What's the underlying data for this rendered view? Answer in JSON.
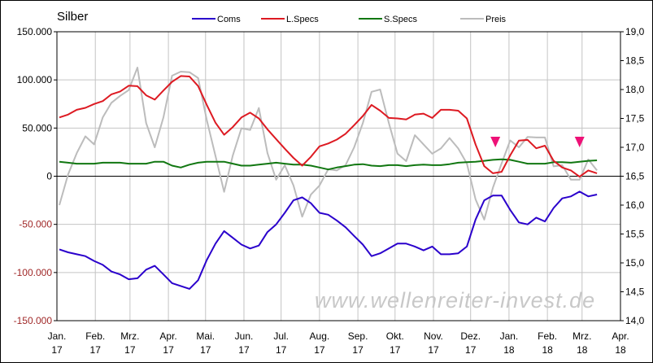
{
  "chart_data": {
    "type": "line",
    "title": "Silber",
    "watermark": "www.wellenreiter-invest.de",
    "x": [
      "2017-01-03",
      "2017-01-10",
      "2017-01-17",
      "2017-01-24",
      "2017-01-31",
      "2017-02-07",
      "2017-02-14",
      "2017-02-21",
      "2017-02-28",
      "2017-03-07",
      "2017-03-14",
      "2017-03-21",
      "2017-03-28",
      "2017-04-04",
      "2017-04-11",
      "2017-04-18",
      "2017-04-25",
      "2017-05-02",
      "2017-05-09",
      "2017-05-16",
      "2017-05-23",
      "2017-05-30",
      "2017-06-06",
      "2017-06-13",
      "2017-06-20",
      "2017-06-27",
      "2017-07-04",
      "2017-07-11",
      "2017-07-18",
      "2017-07-25",
      "2017-08-01",
      "2017-08-08",
      "2017-08-15",
      "2017-08-22",
      "2017-08-29",
      "2017-09-05",
      "2017-09-12",
      "2017-09-19",
      "2017-09-26",
      "2017-10-03",
      "2017-10-10",
      "2017-10-17",
      "2017-10-24",
      "2017-10-31",
      "2017-11-07",
      "2017-11-14",
      "2017-11-21",
      "2017-11-28",
      "2017-12-05",
      "2017-12-12",
      "2017-12-19",
      "2017-12-26",
      "2018-01-02",
      "2018-01-09",
      "2018-01-16",
      "2018-01-23",
      "2018-01-30",
      "2018-02-06",
      "2018-02-13",
      "2018-02-20",
      "2018-02-27",
      "2018-03-06",
      "2018-03-13"
    ],
    "series": [
      {
        "name": "Coms",
        "axis": "left",
        "color": "#2a00cc",
        "values": [
          -76000,
          -79000,
          -81000,
          -83000,
          -88000,
          -92000,
          -99000,
          -102000,
          -107000,
          -106000,
          -97000,
          -93000,
          -102000,
          -111000,
          -114000,
          -117000,
          -108000,
          -87000,
          -70000,
          -57000,
          -64000,
          -71000,
          -75000,
          -72000,
          -58000,
          -50000,
          -38000,
          -25000,
          -22000,
          -28000,
          -38000,
          -40000,
          -46000,
          -53000,
          -62000,
          -71000,
          -83000,
          -80000,
          -75000,
          -70000,
          -70000,
          -73000,
          -77000,
          -73000,
          -81000,
          -81000,
          -80000,
          -73000,
          -45000,
          -25000,
          -20000,
          -20000,
          -35000,
          -48000,
          -50000,
          -43000,
          -47000,
          -33000,
          -23000,
          -21000,
          -16000,
          -21000,
          -19000
        ]
      },
      {
        "name": "L.Specs",
        "axis": "left",
        "color": "#dd1a22",
        "values": [
          61000,
          64000,
          69000,
          71000,
          75000,
          78000,
          85000,
          88000,
          94000,
          93500,
          84000,
          79500,
          89000,
          98000,
          104000,
          103500,
          93600,
          74000,
          55500,
          43000,
          51000,
          61000,
          66000,
          60000,
          48700,
          38500,
          28600,
          19000,
          11000,
          20000,
          31000,
          34000,
          38000,
          44000,
          53000,
          62500,
          74000,
          68000,
          60500,
          60000,
          59000,
          64000,
          65000,
          60500,
          69000,
          69000,
          68000,
          60000,
          33000,
          10500,
          3000,
          4600,
          21600,
          37000,
          37700,
          29000,
          31700,
          16000,
          9000,
          6000,
          -500,
          6000,
          3000
        ]
      },
      {
        "name": "S.Specs",
        "axis": "left",
        "color": "#117711",
        "values": [
          15000,
          14000,
          13000,
          13000,
          13000,
          14000,
          14000,
          14000,
          13000,
          13000,
          13000,
          15000,
          15000,
          11000,
          9000,
          12000,
          14000,
          15000,
          15000,
          15000,
          13000,
          11000,
          11000,
          12000,
          13000,
          14000,
          13000,
          12000,
          12000,
          11000,
          9000,
          7000,
          9000,
          10500,
          12000,
          12500,
          11000,
          10500,
          11500,
          11500,
          10500,
          11500,
          12000,
          11500,
          11500,
          12500,
          14000,
          14500,
          15000,
          16000,
          17000,
          17500,
          17000,
          15000,
          13000,
          13000,
          13000,
          14500,
          14500,
          14000,
          15000,
          16000,
          16500
        ]
      },
      {
        "name": "Preis",
        "axis": "right",
        "color": "#bcbcbc",
        "values": [
          16.0,
          16.53,
          16.9,
          17.19,
          17.05,
          17.52,
          17.77,
          17.89,
          17.99,
          18.38,
          17.42,
          17.0,
          17.52,
          18.24,
          18.31,
          18.3,
          18.2,
          17.47,
          16.85,
          16.23,
          16.86,
          17.33,
          17.3,
          17.68,
          16.9,
          16.44,
          16.69,
          16.34,
          15.8,
          16.18,
          16.34,
          16.62,
          16.6,
          16.69,
          17.0,
          17.42,
          17.96,
          18.0,
          17.42,
          16.89,
          16.76,
          17.21,
          17.05,
          16.89,
          16.98,
          17.16,
          16.98,
          16.72,
          16.1,
          15.75,
          16.3,
          16.72,
          17.12,
          17.0,
          17.18,
          17.17,
          17.17,
          16.67,
          16.69,
          16.44,
          16.44,
          16.79,
          16.6
        ]
      }
    ],
    "markers": [
      {
        "date": "2017-12-21",
        "shape": "triangle-down",
        "color": "#ee1177"
      },
      {
        "date": "2018-02-27",
        "shape": "triangle-down",
        "color": "#ee1177"
      }
    ],
    "y_left": {
      "range": [
        -150000,
        150000
      ],
      "ticks": [
        {
          "value": 150000,
          "label": "150.000"
        },
        {
          "value": 100000,
          "label": "100.000"
        },
        {
          "value": 50000,
          "label": "50.000"
        },
        {
          "value": 0,
          "label": "0"
        },
        {
          "value": -50000,
          "label": "-50.000"
        },
        {
          "value": -100000,
          "label": "-100.000"
        },
        {
          "value": -150000,
          "label": "-150.000"
        }
      ]
    },
    "y_right": {
      "range": [
        14.0,
        19.0
      ],
      "ticks": [
        {
          "value": 19.0,
          "label": "19,0"
        },
        {
          "value": 18.5,
          "label": "18,5"
        },
        {
          "value": 18.0,
          "label": "18,0"
        },
        {
          "value": 17.5,
          "label": "17,5"
        },
        {
          "value": 17.0,
          "label": "17,0"
        },
        {
          "value": 16.5,
          "label": "16,5"
        },
        {
          "value": 16.0,
          "label": "16,0"
        },
        {
          "value": 15.5,
          "label": "15,5"
        },
        {
          "value": 15.0,
          "label": "15,0"
        },
        {
          "value": 14.5,
          "label": "14,5"
        },
        {
          "value": 14.0,
          "label": "14,0"
        }
      ]
    },
    "x_axis": {
      "range": [
        "2017-01-01",
        "2018-04-01"
      ],
      "ticks": [
        {
          "date": "2017-01-01",
          "month": "Jan.",
          "year": "17"
        },
        {
          "date": "2017-02-01",
          "month": "Feb.",
          "year": "17"
        },
        {
          "date": "2017-03-01",
          "month": "Mrz.",
          "year": "17"
        },
        {
          "date": "2017-04-01",
          "month": "Apr.",
          "year": "17"
        },
        {
          "date": "2017-05-01",
          "month": "Mai.",
          "year": "17"
        },
        {
          "date": "2017-06-01",
          "month": "Jun.",
          "year": "17"
        },
        {
          "date": "2017-07-01",
          "month": "Jul.",
          "year": "17"
        },
        {
          "date": "2017-08-01",
          "month": "Aug.",
          "year": "17"
        },
        {
          "date": "2017-09-01",
          "month": "Sep.",
          "year": "17"
        },
        {
          "date": "2017-10-01",
          "month": "Okt.",
          "year": "17"
        },
        {
          "date": "2017-11-01",
          "month": "Nov.",
          "year": "17"
        },
        {
          "date": "2017-12-01",
          "month": "Dez.",
          "year": "17"
        },
        {
          "date": "2018-01-01",
          "month": "Jan.",
          "year": "18"
        },
        {
          "date": "2018-02-01",
          "month": "Feb.",
          "year": "18"
        },
        {
          "date": "2018-03-01",
          "month": "Mrz.",
          "year": "18"
        },
        {
          "date": "2018-04-01",
          "month": "Apr.",
          "year": "18"
        }
      ]
    },
    "grid": true,
    "legend": "top",
    "negative_label_color": "#a02828"
  }
}
